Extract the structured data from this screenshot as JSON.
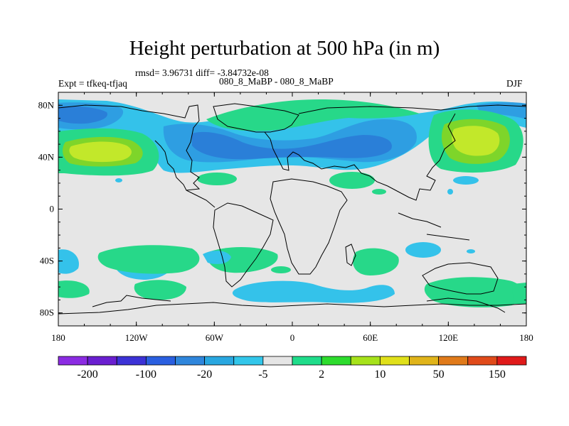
{
  "title": "Height perturbation at 500 hPa (in m)",
  "stats_line": "rmsd= 3.96731 diff= -3.84732e-08",
  "left_label": "Expt = tfkeq-tfjaq",
  "center_label": "080_8_MaBP - 080_8_MaBP",
  "right_label": "DJF",
  "y_axis_ticks": [
    "80N",
    "40N",
    "0",
    "40S",
    "80S"
  ],
  "x_axis_ticks": [
    "180",
    "120W",
    "60W",
    "0",
    "60E",
    "120E",
    "180"
  ],
  "colorbar": {
    "colors": [
      "#8b2be2",
      "#6a1fd0",
      "#3c32d6",
      "#2a5fe0",
      "#2f86dc",
      "#29a7e0",
      "#32c6ea",
      "#e5e5e5",
      "#1fdc8a",
      "#2ddc2d",
      "#a6e21a",
      "#e0e01a",
      "#e0b41a",
      "#e07a1a",
      "#e04a1a",
      "#e01a1a"
    ],
    "labels": [
      "-200",
      "-100",
      "-20",
      "-5",
      "2",
      "10",
      "50",
      "150"
    ]
  },
  "fill_colors": {
    "background": "#e6e6e6",
    "neg_strong": "#2a7fd8",
    "neg_mid": "#2e9ee2",
    "neg_weak": "#34c2ea",
    "pos_weak": "#27d889",
    "pos_mid": "#7ed52a",
    "pos_strong": "#c2e82a"
  }
}
